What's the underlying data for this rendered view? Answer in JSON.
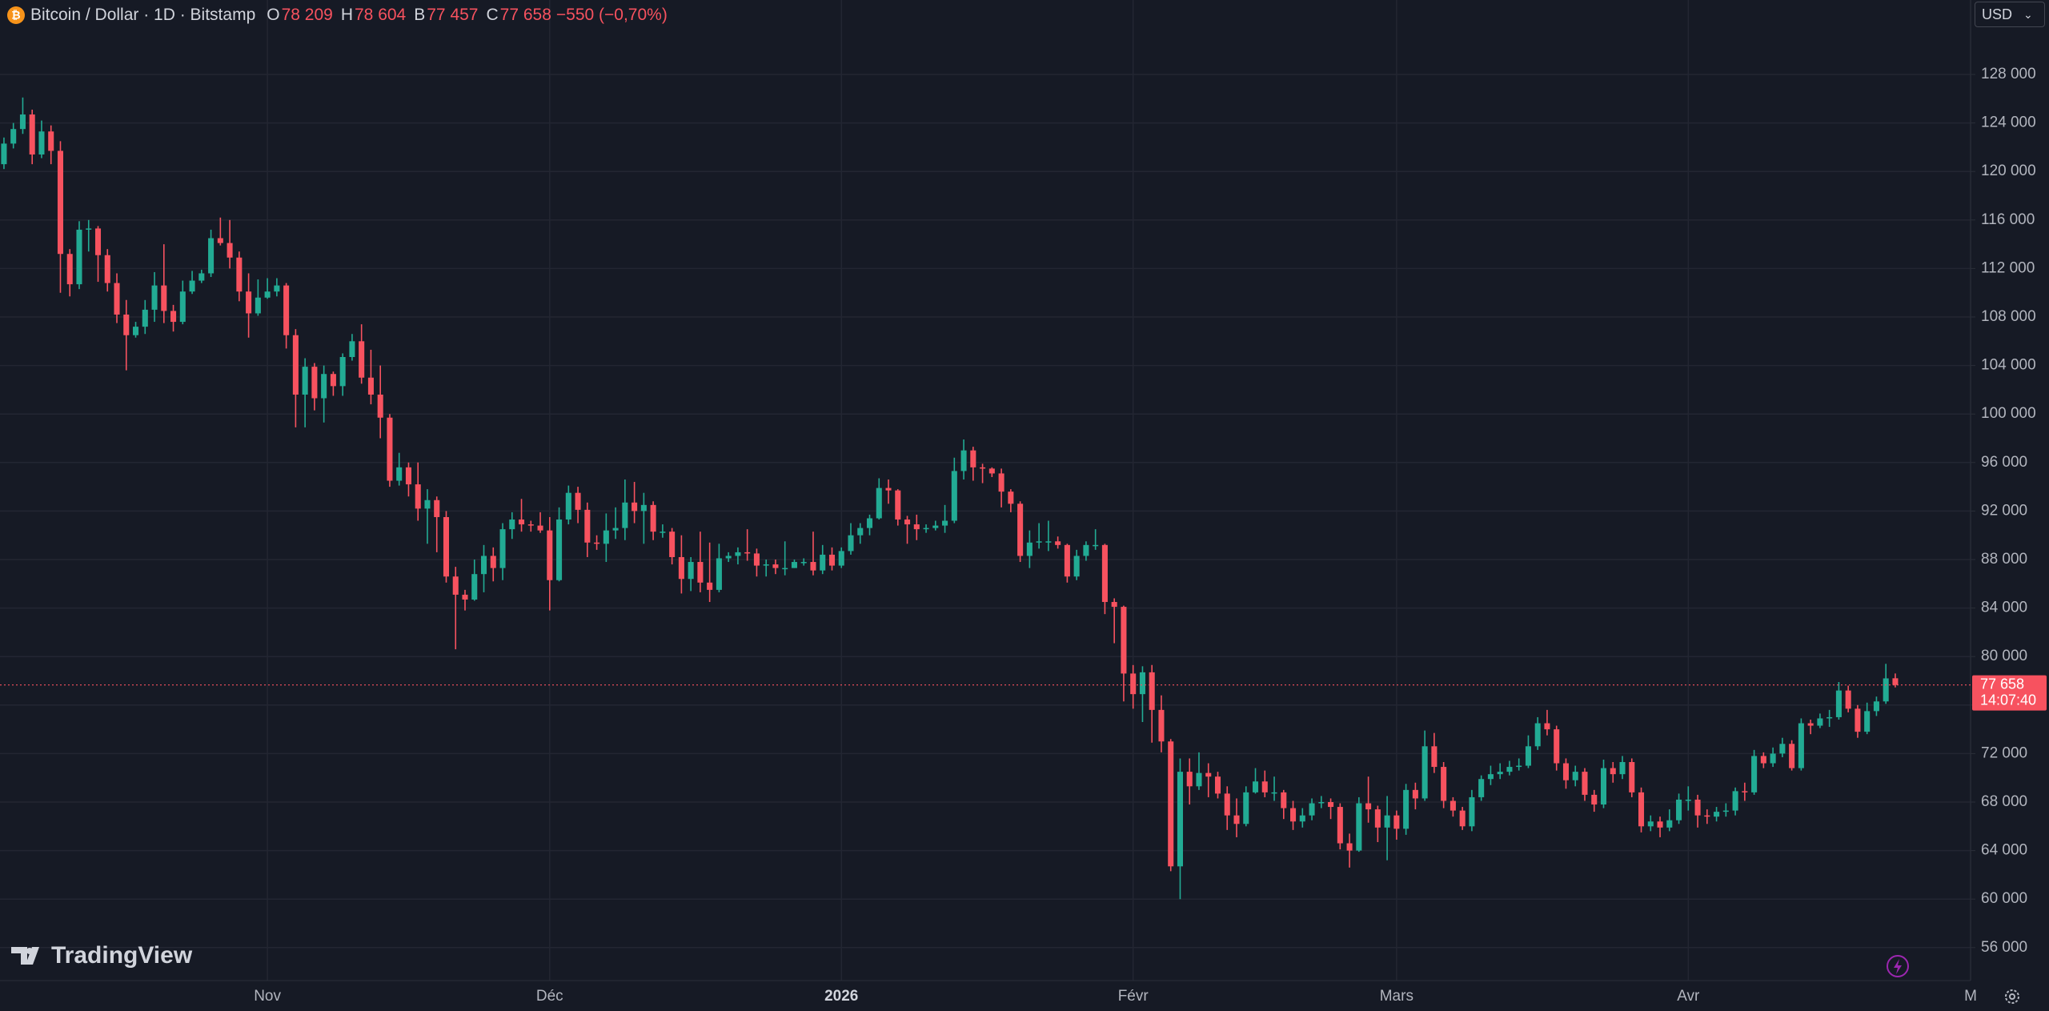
{
  "chart_data": {
    "type": "candlestick",
    "header": {
      "symbol": "Bitcoin / Dollar · 1D · Bitstamp",
      "fields": [
        {
          "key": "O",
          "text": "78 209"
        },
        {
          "key": "H",
          "text": "78 604"
        },
        {
          "key": "B",
          "text": "77 457"
        },
        {
          "key": "C",
          "text": "77 658"
        }
      ],
      "change": "−550 (−0,70%)"
    },
    "currency": "USD",
    "watermark": "TradingView",
    "up_color": "#22ab94",
    "down_color": "#f7525f",
    "grid": true,
    "open": [
      120600,
      122300,
      123500,
      124700,
      121400,
      123300,
      121700,
      113200,
      110700,
      115200,
      115300,
      113100,
      110800,
      108200,
      106500,
      107200,
      108600,
      110600,
      108500,
      107600,
      110100,
      111000,
      111600,
      114500,
      114100,
      112900,
      110100,
      108300,
      109600,
      110100,
      110600,
      106500,
      101600,
      103900,
      101300,
      103300,
      102300,
      104700,
      106000,
      103000,
      101600,
      99700,
      94500,
      95600,
      94200,
      92200,
      92900,
      91500,
      86600,
      85100,
      84700,
      86800,
      88300,
      87300,
      90500,
      91300,
      90900,
      90800,
      90400,
      86300,
      91300,
      93500,
      92100,
      89400,
      89300,
      90400,
      90600,
      92700,
      92000,
      92500,
      90300,
      90300,
      88200,
      86400,
      87800,
      86100,
      85500,
      88100,
      88300,
      88600,
      88500,
      87500,
      87600,
      87300,
      87300,
      87800,
      87800,
      87100,
      88400,
      87500,
      88700,
      90000,
      90600,
      91400,
      93900,
      93700,
      91300,
      90900,
      90500,
      90600,
      90800,
      91200,
      95300,
      97000,
      95600,
      95500,
      95100,
      93600,
      92600,
      88300,
      89400,
      89500,
      89500,
      89200,
      86600,
      88300,
      89200,
      89200,
      84500,
      84100,
      78600,
      76900,
      78700,
      75600,
      73000,
      62700,
      70500,
      69300,
      70400,
      70100,
      68700,
      66900,
      66200,
      68800,
      69700,
      68800,
      68800,
      67500,
      66400,
      66900,
      67900,
      68000,
      67600,
      64600,
      64000,
      67900,
      67400,
      65900,
      66900,
      65800,
      69000,
      68300,
      72600,
      70900,
      68100,
      67300,
      66000,
      68400,
      69900,
      70300,
      70500,
      70900,
      71000,
      72600,
      74500,
      74000,
      71200,
      69800,
      70500,
      68600,
      67800,
      70800,
      70300,
      71300,
      68800,
      66000,
      66400,
      65900,
      66500,
      68200,
      68200,
      66900,
      66800,
      67200,
      67300,
      68900,
      68800,
      71800,
      71200,
      72000,
      72800,
      70800,
      74500,
      74300,
      74900,
      75000,
      77200,
      75700,
      73800,
      75500,
      76300,
      78209
    ],
    "high": [
      122800,
      124000,
      126100,
      125100,
      124200,
      123800,
      122500,
      113600,
      115900,
      116000,
      115500,
      113600,
      111600,
      109400,
      107600,
      109400,
      111700,
      114000,
      109000,
      111000,
      111800,
      111900,
      115200,
      116200,
      116000,
      113400,
      111600,
      111100,
      111200,
      111200,
      110800,
      107000,
      104600,
      104200,
      104000,
      103500,
      105000,
      106600,
      107400,
      105300,
      104000,
      100000,
      96800,
      96000,
      96000,
      93800,
      93200,
      92000,
      87400,
      85500,
      88000,
      89200,
      89000,
      91000,
      91900,
      93000,
      91200,
      91900,
      91500,
      92300,
      94100,
      94000,
      92700,
      90000,
      91800,
      92300,
      94600,
      94400,
      93500,
      92800,
      90900,
      90600,
      90000,
      88200,
      90300,
      89400,
      89300,
      88600,
      89000,
      90500,
      88900,
      88000,
      88000,
      89500,
      88000,
      88100,
      90300,
      89200,
      89000,
      89000,
      91000,
      91000,
      91700,
      94700,
      94600,
      93800,
      91600,
      91700,
      90900,
      91200,
      92500,
      96400,
      97900,
      97300,
      95900,
      95600,
      95500,
      93800,
      92800,
      90400,
      91000,
      91200,
      89900,
      89300,
      88800,
      89500,
      90500,
      89300,
      84800,
      84200,
      79300,
      79200,
      79300,
      76800,
      73200,
      71600,
      71600,
      72100,
      71200,
      70500,
      69300,
      68300,
      69300,
      70800,
      70600,
      70100,
      69000,
      68100,
      67500,
      68300,
      68500,
      68300,
      67900,
      65400,
      68400,
      70100,
      67700,
      68500,
      67300,
      69500,
      69600,
      73900,
      73700,
      71300,
      68400,
      67600,
      69000,
      70200,
      71000,
      71200,
      71400,
      71600,
      73500,
      75000,
      75600,
      74300,
      71600,
      71000,
      70800,
      69000,
      71500,
      71300,
      71800,
      71600,
      69200,
      66900,
      66800,
      67400,
      68700,
      69300,
      68600,
      67400,
      67600,
      67900,
      69200,
      69600,
      72300,
      72100,
      72500,
      73300,
      73100,
      74900,
      74800,
      75300,
      75600,
      77900,
      77600,
      76000,
      76200,
      76700,
      79400,
      78604
    ],
    "low": [
      120200,
      121900,
      123100,
      120600,
      121100,
      120600,
      110000,
      109700,
      110300,
      113400,
      110900,
      110100,
      107500,
      103600,
      106300,
      106600,
      107600,
      107500,
      106800,
      107400,
      109900,
      110800,
      111300,
      113900,
      112000,
      109300,
      106300,
      108100,
      109500,
      109700,
      105400,
      98900,
      98900,
      100300,
      99300,
      101500,
      101500,
      104400,
      102500,
      100800,
      98000,
      94000,
      94100,
      93200,
      91200,
      89300,
      88600,
      86100,
      80600,
      83800,
      84600,
      85300,
      86200,
      86300,
      89700,
      90300,
      90300,
      90200,
      83800,
      86200,
      90900,
      91000,
      88200,
      88800,
      87800,
      89700,
      89600,
      91000,
      89300,
      89600,
      89800,
      87600,
      85200,
      85400,
      85300,
      84500,
      85300,
      87800,
      87600,
      87900,
      86600,
      86600,
      86800,
      86700,
      87300,
      87500,
      86700,
      86800,
      87100,
      87300,
      88400,
      89300,
      90000,
      91300,
      92600,
      90800,
      89300,
      89600,
      90200,
      90400,
      90200,
      91000,
      94600,
      94500,
      94300,
      94800,
      92300,
      91900,
      87800,
      87300,
      88900,
      88700,
      88900,
      86100,
      86300,
      87900,
      88800,
      83500,
      81100,
      76300,
      75700,
      74600,
      72900,
      72100,
      62300,
      60000,
      67800,
      69000,
      68400,
      68300,
      65700,
      65100,
      66000,
      68700,
      68400,
      68100,
      66600,
      65700,
      65900,
      66500,
      67500,
      66600,
      64100,
      62600,
      63900,
      66300,
      64700,
      63200,
      64900,
      65300,
      67400,
      68100,
      70400,
      67500,
      66800,
      65700,
      65600,
      68100,
      69400,
      69900,
      70200,
      70600,
      70800,
      72300,
      73500,
      70600,
      69100,
      69300,
      68100,
      67200,
      67500,
      69600,
      69900,
      68400,
      65500,
      65600,
      65100,
      65600,
      66200,
      67300,
      65900,
      66200,
      66400,
      66800,
      66900,
      68100,
      68600,
      70800,
      70900,
      71700,
      70600,
      70600,
      73600,
      74100,
      74200,
      74800,
      75400,
      73300,
      73600,
      75100,
      76100,
      77457
    ],
    "close": [
      122300,
      123500,
      124700,
      121400,
      123300,
      121700,
      113200,
      110700,
      115200,
      115300,
      113100,
      110800,
      108200,
      106500,
      107200,
      108600,
      110600,
      108500,
      107600,
      110100,
      111000,
      111600,
      114500,
      114100,
      112900,
      110100,
      108300,
      109600,
      110100,
      110600,
      106500,
      101600,
      103900,
      101300,
      103300,
      102300,
      104700,
      106000,
      103000,
      101600,
      99700,
      94500,
      95600,
      94200,
      92200,
      92900,
      91500,
      86600,
      85100,
      84700,
      86800,
      88300,
      87300,
      90500,
      91300,
      90900,
      90800,
      90400,
      86300,
      91300,
      93500,
      92100,
      89400,
      89300,
      90400,
      90600,
      92700,
      92000,
      92500,
      90300,
      90300,
      88200,
      86400,
      87800,
      86100,
      85500,
      88100,
      88300,
      88600,
      88500,
      87500,
      87600,
      87300,
      87300,
      87800,
      87800,
      87100,
      88400,
      87500,
      88700,
      90000,
      90600,
      91400,
      93900,
      93700,
      91300,
      90900,
      90500,
      90600,
      90800,
      91200,
      95300,
      97000,
      95600,
      95500,
      95100,
      93600,
      92600,
      88300,
      89400,
      89500,
      89500,
      89200,
      86600,
      88300,
      89200,
      89200,
      84500,
      84100,
      78600,
      76900,
      78700,
      75600,
      73000,
      62700,
      70500,
      69300,
      70400,
      70100,
      68700,
      66900,
      66200,
      68800,
      69700,
      68800,
      68800,
      67500,
      66400,
      66900,
      67900,
      68000,
      67600,
      64600,
      64000,
      67900,
      67400,
      65900,
      66900,
      65800,
      69000,
      68300,
      72600,
      70900,
      68100,
      67300,
      66000,
      68400,
      69900,
      70300,
      70500,
      70900,
      71000,
      72600,
      74500,
      74000,
      71200,
      69800,
      70500,
      68600,
      67800,
      70800,
      70300,
      71300,
      68800,
      66000,
      66400,
      65900,
      66500,
      68200,
      68200,
      66900,
      66800,
      67200,
      67300,
      68900,
      68800,
      71800,
      71200,
      72000,
      72800,
      70800,
      74500,
      74300,
      74900,
      75000,
      77200,
      75700,
      73800,
      75500,
      76300,
      78200,
      77658
    ],
    "xlim": [
      -0.42,
      209
    ],
    "xticks": [
      {
        "value": 28,
        "label": "Nov"
      },
      {
        "value": 58,
        "label": "Déc"
      },
      {
        "value": 89,
        "label": "2026"
      },
      {
        "value": 120,
        "label": "Févr"
      },
      {
        "value": 148,
        "label": "Mars"
      },
      {
        "value": 179,
        "label": "Avr"
      },
      {
        "value": 209,
        "label": "M"
      }
    ],
    "ylim": [
      53280,
      134140
    ],
    "yticks": [
      {
        "value": 56000,
        "label": "56 000"
      },
      {
        "value": 60000,
        "label": "60 000"
      },
      {
        "value": 64000,
        "label": "64 000"
      },
      {
        "value": 68000,
        "label": "68 000"
      },
      {
        "value": 72000,
        "label": "72 000"
      },
      {
        "value": 76000,
        "label": "76 000"
      },
      {
        "value": 80000,
        "label": "80 000"
      },
      {
        "value": 84000,
        "label": "84 000"
      },
      {
        "value": 88000,
        "label": "88 000"
      },
      {
        "value": 92000,
        "label": "92 000"
      },
      {
        "value": 96000,
        "label": "96 000"
      },
      {
        "value": 100000,
        "label": "100 000"
      },
      {
        "value": 104000,
        "label": "104 000"
      },
      {
        "value": 108000,
        "label": "108 000"
      },
      {
        "value": 112000,
        "label": "112 000"
      },
      {
        "value": 116000,
        "label": "116 000"
      },
      {
        "value": 120000,
        "label": "120 000"
      },
      {
        "value": 124000,
        "label": "124 000"
      },
      {
        "value": 128000,
        "label": "128 000"
      }
    ],
    "last_price": {
      "value": 77658,
      "label": "77 658"
    },
    "countdown": "14:07:40"
  }
}
